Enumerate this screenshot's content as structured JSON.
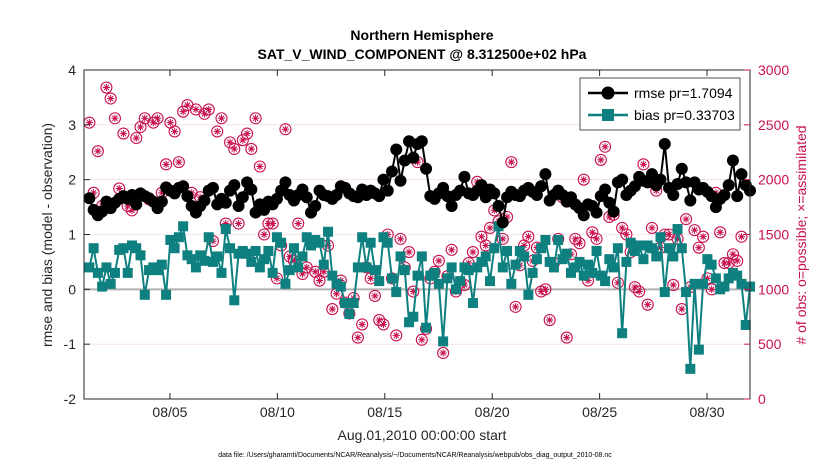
{
  "chart_data": {
    "type": "line",
    "title_line1": "Northern Hemisphere",
    "title_line2": "SAT_V_WIND_COMPONENT @ 8.312500e+02 hPa",
    "xlabel": "Aug.01,2010 00:00:00 start",
    "ylabel_left": "rmse and bias (model - observation)",
    "ylabel_right": "# of obs: o=possible; ×=assimilated",
    "footer": "data file: /Users/gharamti/Documents/NCAR/Reanalysis/~/Documents/NCAR/Reanalysis/webpub/obs_diag_output_2010-08.nc",
    "xlim": [
      1,
      32
    ],
    "ylim_left": [
      -2,
      4
    ],
    "ylim_right": [
      0,
      3000
    ],
    "x_tick_values": [
      5,
      10,
      15,
      20,
      25,
      30
    ],
    "x_tick_labels": [
      "08/05",
      "08/10",
      "08/15",
      "08/20",
      "08/25",
      "08/30"
    ],
    "y_left_ticks": [
      -2,
      -1,
      0,
      1,
      2,
      3,
      4
    ],
    "y_right_ticks": [
      0,
      500,
      1000,
      1500,
      2000,
      2500,
      3000
    ],
    "colors": {
      "rmse": "#000000",
      "bias": "#0f8080",
      "obs": "#c8104e",
      "zero_line": "#b0b0b0",
      "grid": "#f0d0da"
    },
    "series": [
      {
        "name": "rmse pr=1.7094",
        "values": [
          1.66,
          1.45,
          1.35,
          1.42,
          1.6,
          1.48,
          1.58,
          1.65,
          1.7,
          1.65,
          1.72,
          1.55,
          1.75,
          1.7,
          1.66,
          1.6,
          1.48,
          1.6,
          1.86,
          1.8,
          1.75,
          1.85,
          1.88,
          1.7,
          1.52,
          1.4,
          1.52,
          1.62,
          1.8,
          1.85,
          1.55,
          1.65,
          1.58,
          1.8,
          1.9,
          1.52,
          1.68,
          1.95,
          1.82,
          1.4,
          1.55,
          1.45,
          1.6,
          1.55,
          1.65,
          1.8,
          1.95,
          1.72,
          1.62,
          1.72,
          1.82,
          1.68,
          1.4,
          1.52,
          1.8,
          1.72,
          1.7,
          1.65,
          1.72,
          1.88,
          1.85,
          1.75,
          1.7,
          1.68,
          1.82,
          1.72,
          1.8,
          1.75,
          1.7,
          2.0,
          1.8,
          2.15,
          2.55,
          1.98,
          2.35,
          2.7,
          2.4,
          2.65,
          2.7,
          2.2,
          1.7,
          1.65,
          1.75,
          1.85,
          1.7,
          1.52,
          1.72,
          1.8,
          2.05,
          1.75,
          1.72,
          1.8,
          1.9,
          1.68,
          1.82,
          1.75,
          1.52,
          1.22,
          1.68,
          1.78,
          1.72,
          1.7,
          1.8,
          1.85,
          1.78,
          1.72,
          1.88,
          2.1,
          1.62,
          1.72,
          1.8,
          1.72,
          1.6,
          1.68,
          1.55,
          1.48,
          1.35,
          1.55,
          1.52,
          1.4,
          1.7,
          1.82,
          1.58,
          1.42,
          1.95,
          2.0,
          1.72,
          1.8,
          1.88,
          2.05,
          1.98,
          1.95,
          2.1,
          1.9,
          2.0,
          2.65,
          1.85,
          1.72,
          1.92,
          2.2,
          1.95,
          1.62,
          1.95,
          1.82,
          1.85,
          1.78,
          1.7,
          1.5,
          1.65,
          1.72,
          1.9,
          2.35,
          1.7,
          2.1,
          1.9,
          1.8
        ]
      },
      {
        "name": "bias pr=0.33703",
        "values": [
          0.4,
          0.75,
          0.3,
          0.05,
          0.4,
          0.1,
          0.3,
          0.72,
          0.75,
          0.3,
          0.8,
          0.75,
          0.62,
          -0.1,
          0.35,
          0.4,
          0.35,
          0.45,
          -0.1,
          0.9,
          0.75,
          0.95,
          1.15,
          0.62,
          0.55,
          0.4,
          0.62,
          0.52,
          0.95,
          0.5,
          0.6,
          0.3,
          1.1,
          0.75,
          -0.2,
          0.65,
          0.7,
          0.65,
          0.5,
          0.7,
          0.4,
          0.55,
          0.7,
          0.3,
          0.95,
          0.85,
          0.1,
          0.35,
          0.75,
          0.4,
          0.6,
          0.95,
          0.8,
          0.9,
          0.85,
          0.45,
          1.05,
          0.25,
          0.1,
          0.05,
          -0.25,
          -0.45,
          -0.25,
          0.4,
          0.95,
          0.4,
          0.85,
          0.35,
          0.15,
          0.95,
          0.85,
          0.2,
          -0.05,
          0.6,
          0.35,
          -0.6,
          -0.5,
          0.25,
          0.6,
          -0.7,
          0.25,
          0.3,
          0.1,
          -0.95,
          0.2,
          0.4,
          0.0,
          0.15,
          0.4,
          0.35,
          -0.25,
          0.4,
          0.5,
          0.6,
          0.15,
          0.75,
          1.15,
          0.4,
          0.7,
          0.1,
          0.45,
          0.7,
          0.6,
          -0.1,
          0.3,
          0.55,
          0.75,
          0.9,
          0.5,
          0.4,
          0.9,
          0.55,
          0.65,
          0.3,
          0.4,
          0.5,
          0.25,
          0.45,
          0.3,
          0.7,
          0.25,
          0.15,
          0.55,
          0.4,
          0.75,
          -0.8,
          0.5,
          0.85,
          0.7,
          0.8,
          0.55,
          0.8,
          0.75,
          0.6,
          0.95,
          -0.05,
          0.75,
          0.6,
          1.1,
          0.75,
          -0.05,
          -1.45,
          0.1,
          -1.1,
          0.1,
          0.55,
          0.45,
          0.2,
          0.0,
          0.05,
          0.2,
          0.3,
          0.25,
          0.1,
          -0.65,
          0.05
        ]
      },
      {
        "name": "obs possible (right axis)",
        "values": [
          2520,
          1880,
          2260,
          1760,
          2840,
          2740,
          2560,
          1920,
          2420,
          1760,
          1720,
          2380,
          2480,
          2560,
          1820,
          2520,
          2560,
          1880,
          2140,
          2520,
          2440,
          2160,
          2620,
          2680,
          1880,
          2640,
          1840,
          2600,
          2640,
          1440,
          2440,
          2560,
          1600,
          2340,
          2280,
          1600,
          2360,
          2420,
          2280,
          2560,
          2120,
          1500,
          1600,
          1600,
          1100,
          1400,
          2460,
          1300,
          1260,
          1600,
          1140,
          1200,
          1440,
          1160,
          1080,
          1160,
          1400,
          820,
          960,
          1080,
          880,
          780,
          920,
          560,
          680,
          1200,
          1100,
          940,
          720,
          680,
          1500,
          1100,
          580,
          1460,
          1200,
          1340,
          980,
          2160,
          540,
          640,
          1100,
          1160,
          1260,
          420,
          1120,
          1360,
          980,
          1060,
          1040,
          1240,
          1340,
          1980,
          1480,
          1400,
          1560,
          1720,
          1620,
          1460,
          1660,
          2160,
          840,
          1220,
          1400,
          1480,
          1260,
          1380,
          980,
          1000,
          720,
          1240,
          1460,
          1840,
          560,
          1320,
          1460,
          1420,
          2000,
          1080,
          1520,
          1460,
          2180,
          2300,
          1660,
          1680,
          1060,
          1560,
          1500,
          1340,
          1020,
          980,
          2140,
          860,
          1560,
          1900,
          1380,
          1500,
          1500,
          1040,
          1460,
          820,
          1640,
          1020,
          1540,
          1380,
          1480,
          1100,
          1000,
          1880,
          1520,
          1240,
          1240,
          1320,
          1260,
          1480
        ]
      },
      {
        "name": "obs assimilated (right axis)",
        "values": [
          2520,
          1880,
          2260,
          1760,
          2840,
          2740,
          2560,
          1920,
          2420,
          1760,
          1720,
          2380,
          2480,
          2560,
          1820,
          2520,
          2560,
          1880,
          2140,
          2520,
          2440,
          2160,
          2620,
          2680,
          1880,
          2640,
          1840,
          2600,
          2640,
          1440,
          2440,
          2560,
          1600,
          2340,
          2280,
          1600,
          2360,
          2420,
          2280,
          2560,
          2120,
          1500,
          1600,
          1600,
          1100,
          1400,
          2460,
          1300,
          1260,
          1600,
          1140,
          1200,
          1440,
          1160,
          1080,
          1160,
          1400,
          820,
          960,
          1080,
          880,
          780,
          920,
          560,
          680,
          1200,
          1100,
          940,
          720,
          680,
          1500,
          1100,
          580,
          1460,
          1200,
          1340,
          980,
          2160,
          540,
          640,
          1100,
          1160,
          1260,
          420,
          1120,
          1360,
          980,
          1060,
          1040,
          1240,
          1340,
          1980,
          1480,
          1400,
          1560,
          1720,
          1620,
          1460,
          1660,
          2160,
          840,
          1220,
          1400,
          1480,
          1260,
          1380,
          980,
          1000,
          720,
          1240,
          1460,
          1840,
          560,
          1320,
          1460,
          1420,
          2000,
          1080,
          1520,
          1460,
          2180,
          2300,
          1660,
          1680,
          1060,
          1560,
          1500,
          1340,
          1020,
          980,
          2140,
          860,
          1560,
          1900,
          1380,
          1500,
          1500,
          1040,
          1460,
          820,
          1640,
          1020,
          1540,
          1380,
          1480,
          1100,
          1000,
          1880,
          1520,
          1240,
          1240,
          1320,
          1260,
          1480
        ]
      }
    ]
  }
}
